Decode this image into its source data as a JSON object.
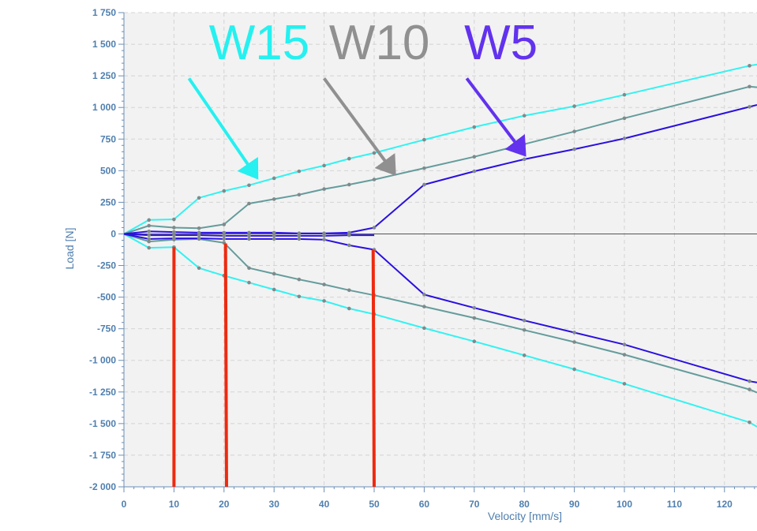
{
  "chart_data": {
    "type": "line",
    "xlabel": "Velocity [mm/s]",
    "ylabel": "Load [N]",
    "xlim": [
      0,
      126.5
    ],
    "ylim": [
      -2000,
      1750
    ],
    "x_ticks": [
      0,
      10,
      20,
      30,
      40,
      50,
      60,
      70,
      80,
      90,
      100,
      110,
      120
    ],
    "x_tick_labels": [
      "0",
      "10",
      "20",
      "30",
      "40",
      "50",
      "60",
      "70",
      "80",
      "90",
      "100",
      "110",
      "120"
    ],
    "y_ticks": [
      1750,
      1500,
      1250,
      1000,
      750,
      500,
      250,
      0,
      -250,
      -500,
      -750,
      -1000,
      -1250,
      -1500,
      -1750,
      -2000
    ],
    "y_tick_labels": [
      "1 750",
      "1 500",
      "1 250",
      "1 000",
      "750",
      "500",
      "250",
      "0",
      "-250",
      "-500",
      "-750",
      "-1 000",
      "-1 250",
      "-1 500",
      "-1 750",
      "-2 000"
    ],
    "grid": true,
    "series": [
      {
        "name": "W15",
        "color": "#33f2f2",
        "x": [
          0,
          5,
          10,
          15,
          20,
          25,
          30,
          35,
          40,
          45,
          50,
          60,
          70,
          80,
          90,
          100,
          125,
          126.5
        ],
        "y": [
          0,
          110,
          115,
          285,
          340,
          385,
          440,
          495,
          540,
          595,
          640,
          745,
          845,
          935,
          1010,
          1100,
          1330,
          1340
        ]
      },
      {
        "name": "W15",
        "color": "#33f2f2",
        "x": [
          0,
          5,
          10,
          15,
          20,
          25,
          30,
          35,
          40,
          45,
          50,
          60,
          70,
          80,
          90,
          100,
          125,
          126.5
        ],
        "y": [
          0,
          -110,
          -105,
          -270,
          -330,
          -385,
          -440,
          -495,
          -530,
          -590,
          -635,
          -745,
          -850,
          -960,
          -1070,
          -1185,
          -1490,
          -1525
        ]
      },
      {
        "name": "W10",
        "color": "#659c9c",
        "x": [
          0,
          5,
          10,
          15,
          20,
          25,
          30,
          35,
          40,
          45,
          50,
          60,
          70,
          80,
          90,
          100,
          125,
          126.5
        ],
        "y": [
          0,
          65,
          50,
          45,
          75,
          240,
          275,
          310,
          355,
          390,
          430,
          520,
          610,
          710,
          810,
          915,
          1165,
          1160
        ]
      },
      {
        "name": "W10",
        "color": "#659c9c",
        "x": [
          0,
          5,
          10,
          15,
          20,
          25,
          30,
          35,
          40,
          45,
          50,
          60,
          70,
          80,
          90,
          100,
          125,
          126.5
        ],
        "y": [
          0,
          -60,
          -45,
          -40,
          -70,
          -270,
          -315,
          -360,
          -400,
          -445,
          -485,
          -575,
          -665,
          -760,
          -855,
          -955,
          -1230,
          -1255
        ]
      },
      {
        "name": "W5",
        "color": "#2a10e0",
        "x": [
          0,
          5,
          10,
          15,
          20,
          25,
          30,
          35,
          40,
          45,
          50,
          60,
          70,
          80,
          90,
          100,
          125,
          126.5
        ],
        "y": [
          0,
          20,
          15,
          10,
          10,
          10,
          10,
          5,
          5,
          10,
          50,
          390,
          495,
          590,
          670,
          755,
          1005,
          1020
        ]
      },
      {
        "name": "W5",
        "color": "#2a10e0",
        "x": [
          0,
          5,
          10,
          15,
          20,
          25,
          30,
          35,
          40,
          45,
          50,
          60,
          70,
          80,
          90,
          100,
          125,
          126.5
        ],
        "y": [
          0,
          -40,
          -35,
          -35,
          -40,
          -40,
          -40,
          -40,
          -45,
          -90,
          -125,
          -480,
          -585,
          -685,
          -780,
          -875,
          -1165,
          -1175
        ]
      },
      {
        "name": "",
        "color": "#2a10e0",
        "x": [
          0,
          5,
          10,
          15,
          20,
          25,
          30,
          35,
          40,
          45,
          50
        ],
        "y": [
          0,
          -10,
          -10,
          -10,
          -15,
          -15,
          -15,
          -15,
          -15,
          -10,
          -10
        ]
      }
    ],
    "markers": [
      {
        "x": [
          10,
          10
        ],
        "y": [
          -105,
          -2000
        ],
        "color": "#ee2a0f"
      },
      {
        "x": [
          20.3,
          20.5
        ],
        "y": [
          -75,
          -2000
        ],
        "color": "#ee2a0f"
      },
      {
        "x": [
          49.8,
          50
        ],
        "y": [
          -125,
          -2000
        ],
        "color": "#ee2a0f"
      }
    ],
    "annotations": [
      {
        "label": "W15",
        "color": "#26f0f0",
        "anchor_x": 17,
        "anchor_y": 1520,
        "arrow_from": [
          13,
          1230
        ],
        "arrow_to": [
          26.5,
          450
        ]
      },
      {
        "label": "W10",
        "color": "#909090",
        "anchor_x": 41,
        "anchor_y": 1520,
        "arrow_from": [
          40,
          1230
        ],
        "arrow_to": [
          54,
          480
        ]
      },
      {
        "label": "W5",
        "color": "#6232ee",
        "anchor_x": 68,
        "anchor_y": 1520,
        "arrow_from": [
          68.5,
          1230
        ],
        "arrow_to": [
          80,
          630
        ]
      }
    ]
  }
}
